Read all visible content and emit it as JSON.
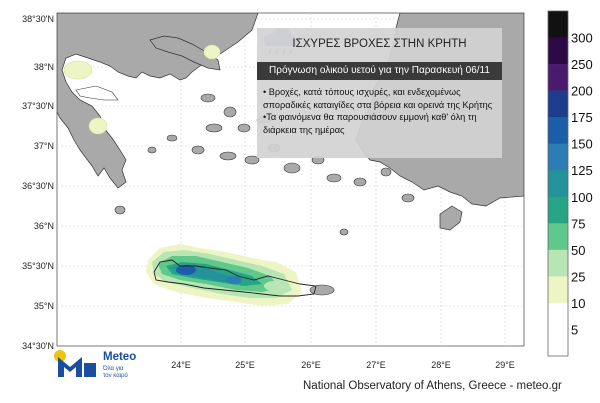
{
  "title": "ΙΣΧΥΡΕΣ ΒΡΟΧΕΣ ΣΤΗΝ ΚΡΗΤΗ",
  "subtitle": "Πρόγνωση ολικού υετού για την Παρασκευή 06/11",
  "bullets": [
    "• Βροχές, κατά τόπους ισχυρές, και ενδεχομένως σποραδικές καταιγίδες στα βόρεια και ορεινά της Κρήτης",
    "•Τα φαινόμενα θα παρουσιάσουν εμμονή καθ' όλη τη διάρκεια της ημέρας"
  ],
  "latitude_labels": [
    "38°30'N",
    "38°N",
    "37°30'N",
    "37°N",
    "36°30'N",
    "36°N",
    "35°30'N",
    "35°N",
    "34°30'N"
  ],
  "longitude_labels": [
    "24°E",
    "25°E",
    "26°E",
    "27°E",
    "28°E",
    "29°E"
  ],
  "colorbar": {
    "labels": [
      "300",
      "250",
      "200",
      "175",
      "150",
      "125",
      "100",
      "75",
      "50",
      "25",
      "10",
      "5"
    ],
    "colors": [
      "#111111",
      "#2d0a45",
      "#4a1a6e",
      "#1d3d8c",
      "#1a5ea8",
      "#2b7db3",
      "#23929a",
      "#27a386",
      "#5ec98a",
      "#b7e6b4",
      "#eef5c4",
      "#ffffff",
      "#ffffff"
    ]
  },
  "icon": "rain-cloud-icon",
  "logo": {
    "name": "Meteo",
    "tagline": [
      "Όλα για",
      "τον καιρό"
    ]
  },
  "footer": "National Observatory of Athens, Greece - meteo.gr"
}
